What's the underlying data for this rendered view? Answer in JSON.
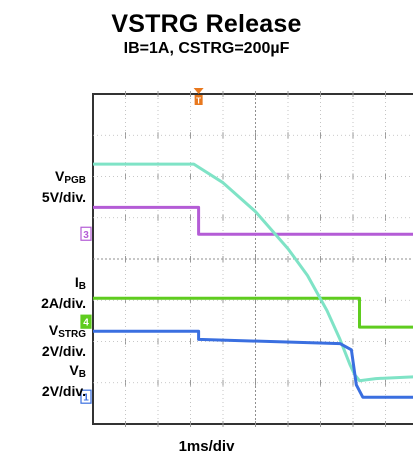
{
  "chart_data": {
    "type": "line",
    "title": "VSTRG Release",
    "subtitle": "IB=1A, CSTRG=200µF",
    "xlabel": "1ms/div",
    "trigger_marker": "T",
    "channels": [
      {
        "id": "3",
        "color": "#b45cd6"
      },
      {
        "id": "4",
        "color": "#5fcc1f"
      },
      {
        "id": "1",
        "color": "#3a6fe0"
      }
    ],
    "grid": {
      "x_divisions": 10,
      "y_divisions": 8
    },
    "series": [
      {
        "label_main": "V",
        "label_sub": "PGB",
        "scale": "5V/div.",
        "channel": "3",
        "color": "#b45cd6",
        "points": [
          [
            0,
            5.25
          ],
          [
            3.25,
            5.25
          ],
          [
            3.25,
            4.6
          ],
          [
            10,
            4.6
          ]
        ]
      },
      {
        "label_main": "I",
        "label_sub": "B",
        "scale": "2A/div.",
        "channel": "4",
        "color": "#5fcc1f",
        "points": [
          [
            0,
            3.05
          ],
          [
            8.2,
            3.05
          ],
          [
            8.2,
            2.35
          ],
          [
            10,
            2.35
          ]
        ]
      },
      {
        "label_main": "V",
        "label_sub": "STRG",
        "scale": "2V/div.",
        "color": "#7fe3c6",
        "points": [
          [
            0,
            6.3
          ],
          [
            3.1,
            6.3
          ],
          [
            4.0,
            5.85
          ],
          [
            5.0,
            5.15
          ],
          [
            6.0,
            4.25
          ],
          [
            6.6,
            3.6
          ],
          [
            7.2,
            2.75
          ],
          [
            7.6,
            2.05
          ],
          [
            7.9,
            1.45
          ],
          [
            8.05,
            1.2
          ],
          [
            8.2,
            1.05
          ],
          [
            8.7,
            1.1
          ],
          [
            10,
            1.15
          ]
        ]
      },
      {
        "label_main": "V",
        "label_sub": "B",
        "scale": "2V/div.",
        "channel": "1",
        "color": "#3a6fe0",
        "points": [
          [
            0,
            2.25
          ],
          [
            3.25,
            2.25
          ],
          [
            3.25,
            2.05
          ],
          [
            7.6,
            1.95
          ],
          [
            7.95,
            1.8
          ],
          [
            8.1,
            0.95
          ],
          [
            8.3,
            0.65
          ],
          [
            10,
            0.65
          ]
        ]
      }
    ]
  }
}
